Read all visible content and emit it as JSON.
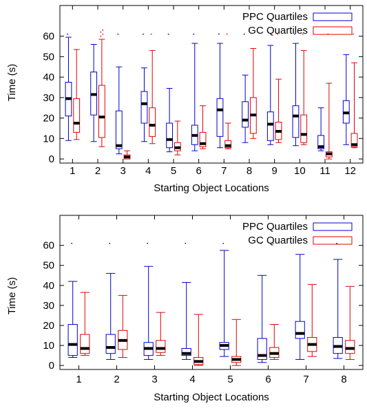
{
  "colors": {
    "ppc": "#0000cc",
    "gc": "#e00000",
    "median": "#000000",
    "axis": "#000000"
  },
  "chart_data": [
    {
      "type": "box",
      "xlabel": "Starting Object Locations",
      "ylabel": "Time (s)",
      "ylim": [
        -2,
        75
      ],
      "yticks": [
        0,
        10,
        20,
        30,
        40,
        50,
        60
      ],
      "categories": [
        "1",
        "2",
        "3",
        "4",
        "5",
        "6",
        "7",
        "8",
        "9",
        "10",
        "11",
        "12"
      ],
      "legend": {
        "position": "top-right",
        "entries": [
          "PPC Quartiles",
          "GC Quartiles"
        ]
      },
      "series": [
        {
          "name": "PPC Quartiles",
          "color": "#0000cc",
          "boxes": [
            {
              "min": 9,
              "q1": 21,
              "median": 29.5,
              "q3": 37.5,
              "max": 59.5
            },
            {
              "min": 8.5,
              "q1": 21.5,
              "median": 31.5,
              "q3": 42.5,
              "max": 56
            },
            {
              "min": 2.5,
              "q1": 5,
              "median": 6.5,
              "q3": 23.5,
              "max": 45
            },
            {
              "min": 8.5,
              "q1": 17.5,
              "median": 27,
              "q3": 33,
              "max": 44.5
            },
            {
              "min": 3.5,
              "q1": 5.5,
              "median": 9.5,
              "q3": 17.5,
              "max": 34.5
            },
            {
              "min": 4,
              "q1": 7,
              "median": 11.5,
              "q3": 16.5,
              "max": 56.5
            },
            {
              "min": 5.5,
              "q1": 11,
              "median": 24,
              "q3": 29.5,
              "max": 56.5
            },
            {
              "min": 8,
              "q1": 15.5,
              "median": 19,
              "q3": 28,
              "max": 41
            },
            {
              "min": 7,
              "q1": 9,
              "median": 17,
              "q3": 23,
              "max": 55.5
            },
            {
              "min": 6.5,
              "q1": 10.5,
              "median": 21,
              "q3": 26,
              "max": 56.5
            },
            {
              "min": 4,
              "q1": 5,
              "median": 6,
              "q3": 11.5,
              "max": 25
            },
            {
              "min": 7,
              "q1": 17.5,
              "median": 22.5,
              "q3": 28.5,
              "max": 51
            }
          ]
        },
        {
          "name": "GC Quartiles",
          "color": "#e00000",
          "boxes": [
            {
              "min": 9.5,
              "q1": 13,
              "median": 17.5,
              "q3": 29.5,
              "max": 53.5
            },
            {
              "min": 6,
              "q1": 10.5,
              "median": 20.5,
              "q3": 36,
              "max": 58.5
            },
            {
              "min": 0,
              "q1": 0,
              "median": 1,
              "q3": 2,
              "max": 4
            },
            {
              "min": 7.5,
              "q1": 11,
              "median": 16.5,
              "q3": 25,
              "max": 53
            },
            {
              "min": 2,
              "q1": 4,
              "median": 5.5,
              "q3": 8,
              "max": 18.5
            },
            {
              "min": 5,
              "q1": 6,
              "median": 7.5,
              "q3": 13,
              "max": 26
            },
            {
              "min": 5,
              "q1": 5.5,
              "median": 6.5,
              "q3": 9,
              "max": 17.5
            },
            {
              "min": 10,
              "q1": 12.5,
              "median": 21.5,
              "q3": 30,
              "max": 54
            },
            {
              "min": 8,
              "q1": 9.5,
              "median": 13.5,
              "q3": 18,
              "max": 39
            },
            {
              "min": 7,
              "q1": 8,
              "median": 12,
              "q3": 21.5,
              "max": 53
            },
            {
              "min": 0,
              "q1": 1,
              "median": 2.5,
              "q3": 3.5,
              "max": 37
            },
            {
              "min": 5.5,
              "q1": 6,
              "median": 7,
              "q3": 12.5,
              "max": 47
            }
          ]
        }
      ],
      "outliers": [
        {
          "x": "1",
          "series": "PPC Quartiles",
          "values": [
            61
          ]
        },
        {
          "x": "2",
          "series": "GC Quartiles",
          "values": [
            60,
            61,
            62,
            63
          ]
        },
        {
          "x": "3",
          "series": "PPC Quartiles",
          "values": [
            61
          ]
        },
        {
          "x": "4",
          "series": "PPC Quartiles",
          "values": [
            61
          ]
        },
        {
          "x": "4",
          "series": "GC Quartiles",
          "values": [
            61
          ]
        },
        {
          "x": "5",
          "series": "PPC Quartiles",
          "values": [
            61
          ]
        },
        {
          "x": "6",
          "series": "PPC Quartiles",
          "values": [
            61
          ]
        },
        {
          "x": "7",
          "series": "PPC Quartiles",
          "values": [
            61
          ]
        },
        {
          "x": "7",
          "series": "GC Quartiles",
          "values": [
            61
          ]
        },
        {
          "x": "8",
          "series": "PPC Quartiles",
          "values": [
            61
          ]
        },
        {
          "x": "9",
          "series": "GC Quartiles",
          "values": [
            61
          ]
        },
        {
          "x": "10",
          "series": "PPC Quartiles",
          "values": [
            61
          ]
        },
        {
          "x": "10",
          "series": "GC Quartiles",
          "values": [
            61
          ]
        },
        {
          "x": "11",
          "series": "GC Quartiles",
          "values": [
            61
          ]
        },
        {
          "x": "12",
          "series": "GC Quartiles",
          "values": [
            61
          ]
        }
      ]
    },
    {
      "type": "box",
      "xlabel": "Starting Object Locations",
      "ylabel": "Time (s)",
      "ylim": [
        -2,
        75
      ],
      "yticks": [
        0,
        10,
        20,
        30,
        40,
        50,
        60
      ],
      "categories": [
        "1",
        "2",
        "3",
        "4",
        "5",
        "6",
        "7",
        "8"
      ],
      "legend": {
        "position": "top-right",
        "entries": [
          "PPC Quartiles",
          "GC Quartiles"
        ]
      },
      "series": [
        {
          "name": "PPC Quartiles",
          "color": "#0000cc",
          "boxes": [
            {
              "min": 4,
              "q1": 5,
              "median": 10.5,
              "q3": 20.5,
              "max": 42
            },
            {
              "min": 3,
              "q1": 6,
              "median": 9,
              "q3": 15.5,
              "max": 46
            },
            {
              "min": 3,
              "q1": 5,
              "median": 8.5,
              "q3": 11.5,
              "max": 49.5
            },
            {
              "min": 3,
              "q1": 5,
              "median": 6,
              "q3": 8.5,
              "max": 41.5
            },
            {
              "min": 4.5,
              "q1": 8,
              "median": 10,
              "q3": 11.5,
              "max": 57.5
            },
            {
              "min": 1.5,
              "q1": 3,
              "median": 5,
              "q3": 13.5,
              "max": 45
            },
            {
              "min": 3,
              "q1": 13.5,
              "median": 16,
              "q3": 22,
              "max": 55.5
            },
            {
              "min": 3.5,
              "q1": 6,
              "median": 9.5,
              "q3": 14,
              "max": 53
            }
          ]
        },
        {
          "name": "GC Quartiles",
          "color": "#e00000",
          "boxes": [
            {
              "min": 5,
              "q1": 6,
              "median": 8.5,
              "q3": 15.5,
              "max": 36.5
            },
            {
              "min": 4,
              "q1": 8,
              "median": 12.5,
              "q3": 17.5,
              "max": 35
            },
            {
              "min": 5,
              "q1": 6.5,
              "median": 8.5,
              "q3": 12.5,
              "max": 26.5
            },
            {
              "min": 0,
              "q1": 0.5,
              "median": 2,
              "q3": 4,
              "max": 25.5
            },
            {
              "min": 0,
              "q1": 1.5,
              "median": 3,
              "q3": 4.5,
              "max": 23
            },
            {
              "min": 3,
              "q1": 4,
              "median": 6,
              "q3": 9,
              "max": 20.5
            },
            {
              "min": 4.5,
              "q1": 7,
              "median": 10.5,
              "q3": 14,
              "max": 40.5
            },
            {
              "min": 3,
              "q1": 6,
              "median": 8.5,
              "q3": 12.5,
              "max": 39.5
            }
          ]
        }
      ],
      "outliers": [
        {
          "x": "1",
          "series": "PPC Quartiles",
          "values": [
            61
          ]
        },
        {
          "x": "2",
          "series": "PPC Quartiles",
          "values": [
            61
          ]
        },
        {
          "x": "3",
          "series": "PPC Quartiles",
          "values": [
            61
          ]
        },
        {
          "x": "4",
          "series": "PPC Quartiles",
          "values": [
            61
          ]
        },
        {
          "x": "5",
          "series": "PPC Quartiles",
          "values": [
            61
          ]
        },
        {
          "x": "6",
          "series": "PPC Quartiles",
          "values": [
            61
          ]
        },
        {
          "x": "6",
          "series": "GC Quartiles",
          "values": [
            61
          ]
        },
        {
          "x": "7",
          "series": "PPC Quartiles",
          "values": [
            61
          ]
        },
        {
          "x": "8",
          "series": "PPC Quartiles",
          "values": [
            61
          ]
        }
      ]
    }
  ]
}
